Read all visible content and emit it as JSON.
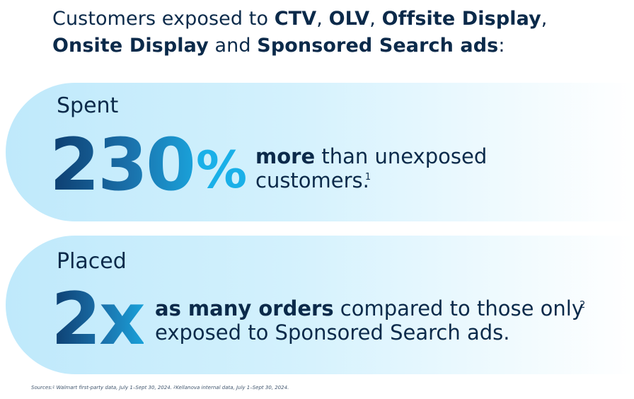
{
  "headline": {
    "p1": "Customers exposed to ",
    "b1": "CTV",
    "p2": ", ",
    "b2": "OLV",
    "p3": ", ",
    "b3": "Offsite Display",
    "p4": ",",
    "b4": "Onsite Display",
    "p5": " and ",
    "b5": "Sponsored Search ads",
    "p6": ":"
  },
  "stat1": {
    "verb": "Spent",
    "number": "230",
    "unit": "%",
    "desc_bold": "more",
    "desc_rest_line1": " than unexposed",
    "desc_rest_line2": "customers.",
    "footnote": "1"
  },
  "stat2": {
    "verb": "Placed",
    "number": "2x",
    "desc_bold": "as many orders",
    "desc_rest_line1": " compared to those only",
    "desc_rest_line2": "exposed to Sponsored Search ads.",
    "footnote": "2"
  },
  "sources": {
    "label": "Sources:",
    "n1": "1",
    "s1": " Walmart first-party data, July 1–Sept 30, 2024. ",
    "n2": "2",
    "s2": "Kellanova internal data, July 1–Sept 30, 2024."
  },
  "colors": {
    "text": "#0b2a4a",
    "accent": "#1ab0e8",
    "pill_start": "#bfe9fb"
  }
}
